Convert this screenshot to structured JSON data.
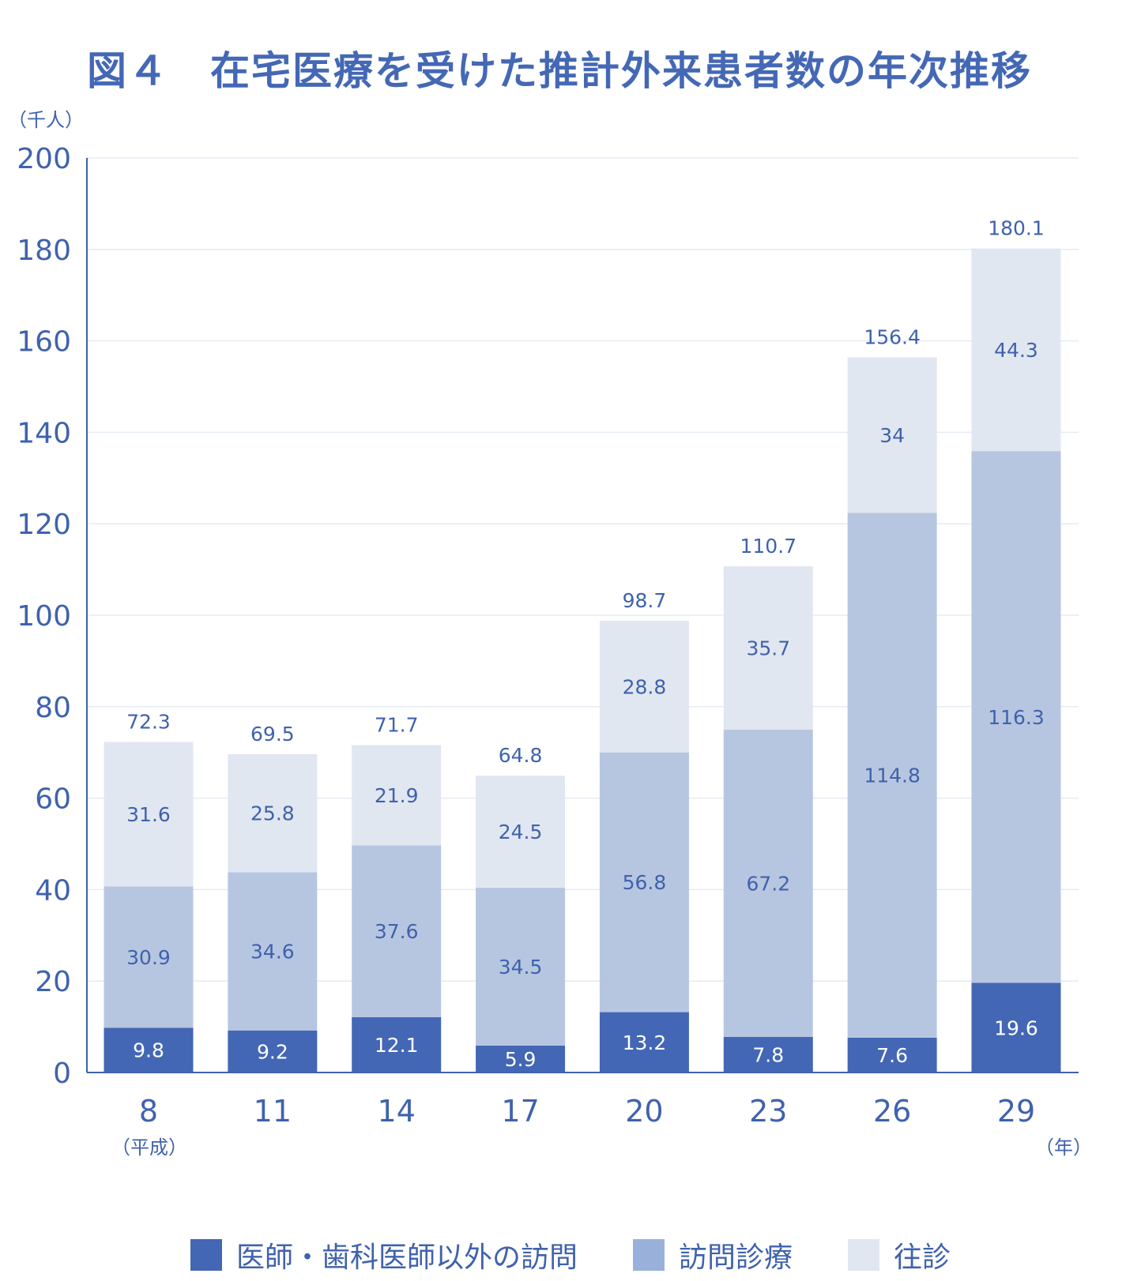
{
  "chart_data": {
    "type": "bar",
    "stacked": true,
    "title": "図４　在宅医療を受けた推計外来患者数の年次推移",
    "y_unit_label": "（千人）",
    "x_unit_label": "（年）",
    "era_label": "（平成）",
    "ylim": [
      0,
      200
    ],
    "y_ticks": [
      "0",
      "20",
      "40",
      "60",
      "80",
      "100",
      "120",
      "140",
      "160",
      "180",
      "200"
    ],
    "categories": [
      "8",
      "11",
      "14",
      "17",
      "20",
      "23",
      "26",
      "29"
    ],
    "totals": [
      "72.3",
      "69.5",
      "71.7",
      "64.8",
      "98.7",
      "110.7",
      "156.4",
      "180.1"
    ],
    "series": [
      {
        "name": "医師・歯科医師以外の訪問",
        "color": "#4367b4",
        "values": [
          9.8,
          9.2,
          12.1,
          5.9,
          13.2,
          7.8,
          7.6,
          19.6
        ],
        "labels": [
          "9.8",
          "9.2",
          "12.1",
          "5.9",
          "13.2",
          "7.8",
          "7.6",
          "19.6"
        ]
      },
      {
        "name": "訪問診療",
        "color": "#b7c6e0",
        "values": [
          30.9,
          34.6,
          37.6,
          34.5,
          56.8,
          67.2,
          114.8,
          116.3
        ],
        "labels": [
          "30.9",
          "34.6",
          "37.6",
          "34.5",
          "56.8",
          "67.2",
          "114.8",
          "116.3"
        ]
      },
      {
        "name": "往診",
        "color": "#e1e7f0",
        "values": [
          31.6,
          25.8,
          21.9,
          24.5,
          28.8,
          35.7,
          34,
          44.3
        ],
        "labels": [
          "31.6",
          "25.8",
          "21.9",
          "24.5",
          "28.8",
          "35.7",
          "34",
          "44.3"
        ]
      }
    ],
    "legend": {
      "position": "bottom",
      "items": [
        {
          "label": "医師・歯科医師以外の訪問",
          "color": "#4367b4"
        },
        {
          "label": "訪問診療",
          "color": "#99b1da"
        },
        {
          "label": "往診",
          "color": "#e1e7f0"
        }
      ]
    },
    "grid": true
  }
}
